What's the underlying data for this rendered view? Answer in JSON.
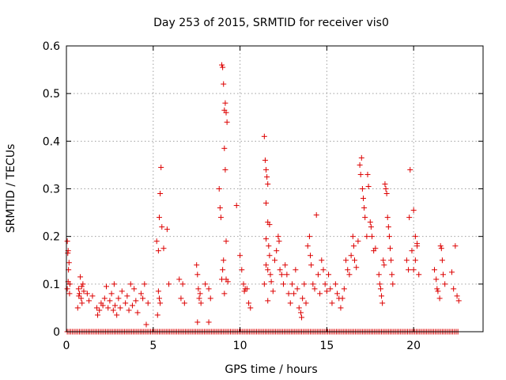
{
  "chart_data": {
    "type": "scatter",
    "title": "Day 253 of 2015, SRMTID for receiver vis0",
    "xlabel": "GPS time / hours",
    "ylabel": "SRMTID / TECUs",
    "xlim": [
      0,
      24
    ],
    "ylim": [
      0,
      0.6
    ],
    "xticks": [
      0,
      5,
      10,
      15,
      20
    ],
    "yticks": [
      0,
      0.1,
      0.2,
      0.3,
      0.4,
      0.5,
      0.6
    ],
    "grid": true,
    "marker": "+",
    "marker_color": "#dd0000",
    "series": [
      {
        "name": "vis0",
        "points": [
          [
            0.05,
            0.19
          ],
          [
            0.1,
            0.17
          ],
          [
            0.08,
            0.165
          ],
          [
            0.12,
            0.13
          ],
          [
            0.15,
            0.145
          ],
          [
            0.05,
            0.09
          ],
          [
            0.18,
            0.08
          ],
          [
            0.1,
            0.105
          ],
          [
            0.2,
            0.1
          ],
          [
            0.7,
            0.09
          ],
          [
            0.8,
            0.115
          ],
          [
            0.75,
            0.08
          ],
          [
            0.85,
            0.07
          ],
          [
            0.9,
            0.06
          ],
          [
            0.95,
            0.1
          ],
          [
            0.65,
            0.05
          ],
          [
            1.0,
            0.085
          ],
          [
            0.72,
            0.075
          ],
          [
            0.88,
            0.095
          ],
          [
            1.2,
            0.08
          ],
          [
            1.3,
            0.065
          ],
          [
            1.5,
            0.075
          ],
          [
            1.75,
            0.05
          ],
          [
            1.8,
            0.035
          ],
          [
            1.9,
            0.045
          ],
          [
            2.0,
            0.06
          ],
          [
            2.1,
            0.055
          ],
          [
            2.2,
            0.07
          ],
          [
            2.3,
            0.095
          ],
          [
            2.4,
            0.05
          ],
          [
            2.5,
            0.065
          ],
          [
            2.6,
            0.08
          ],
          [
            2.7,
            0.045
          ],
          [
            2.75,
            0.1
          ],
          [
            2.8,
            0.055
          ],
          [
            2.9,
            0.035
          ],
          [
            3.0,
            0.07
          ],
          [
            3.1,
            0.05
          ],
          [
            3.2,
            0.085
          ],
          [
            3.4,
            0.06
          ],
          [
            3.5,
            0.075
          ],
          [
            3.6,
            0.045
          ],
          [
            3.7,
            0.1
          ],
          [
            3.8,
            0.055
          ],
          [
            3.9,
            0.09
          ],
          [
            4.0,
            0.065
          ],
          [
            4.1,
            0.04
          ],
          [
            4.3,
            0.08
          ],
          [
            4.4,
            0.07
          ],
          [
            4.5,
            0.1
          ],
          [
            4.6,
            0.015
          ],
          [
            4.7,
            0.06
          ],
          [
            5.2,
            0.19
          ],
          [
            5.3,
            0.17
          ],
          [
            5.35,
            0.24
          ],
          [
            5.4,
            0.29
          ],
          [
            5.45,
            0.345
          ],
          [
            5.5,
            0.22
          ],
          [
            5.6,
            0.175
          ],
          [
            5.8,
            0.215
          ],
          [
            5.9,
            0.1
          ],
          [
            5.3,
            0.085
          ],
          [
            5.35,
            0.07
          ],
          [
            5.4,
            0.06
          ],
          [
            5.25,
            0.035
          ],
          [
            6.5,
            0.11
          ],
          [
            6.6,
            0.07
          ],
          [
            6.7,
            0.1
          ],
          [
            6.8,
            0.06
          ],
          [
            7.5,
            0.14
          ],
          [
            7.55,
            0.12
          ],
          [
            7.6,
            0.09
          ],
          [
            7.65,
            0.07
          ],
          [
            7.7,
            0.08
          ],
          [
            7.75,
            0.06
          ],
          [
            7.55,
            0.02
          ],
          [
            8.0,
            0.1
          ],
          [
            8.2,
            0.09
          ],
          [
            8.3,
            0.07
          ],
          [
            8.2,
            0.02
          ],
          [
            8.8,
            0.3
          ],
          [
            8.85,
            0.26
          ],
          [
            8.9,
            0.24
          ],
          [
            8.95,
            0.56
          ],
          [
            9.0,
            0.555
          ],
          [
            9.05,
            0.52
          ],
          [
            9.1,
            0.465
          ],
          [
            9.15,
            0.48
          ],
          [
            9.2,
            0.46
          ],
          [
            9.25,
            0.44
          ],
          [
            9.1,
            0.385
          ],
          [
            9.15,
            0.34
          ],
          [
            9.2,
            0.19
          ],
          [
            9.05,
            0.15
          ],
          [
            9.0,
            0.13
          ],
          [
            9.2,
            0.11
          ],
          [
            9.3,
            0.105
          ],
          [
            9.1,
            0.08
          ],
          [
            8.95,
            0.11
          ],
          [
            9.8,
            0.265
          ],
          [
            10.0,
            0.16
          ],
          [
            10.1,
            0.13
          ],
          [
            10.2,
            0.1
          ],
          [
            10.25,
            0.085
          ],
          [
            10.3,
            0.09
          ],
          [
            10.4,
            0.09
          ],
          [
            10.5,
            0.06
          ],
          [
            10.6,
            0.05
          ],
          [
            11.4,
            0.41
          ],
          [
            11.45,
            0.36
          ],
          [
            11.5,
            0.34
          ],
          [
            11.55,
            0.325
          ],
          [
            11.6,
            0.31
          ],
          [
            11.5,
            0.27
          ],
          [
            11.6,
            0.23
          ],
          [
            11.7,
            0.225
          ],
          [
            11.5,
            0.195
          ],
          [
            11.65,
            0.18
          ],
          [
            11.7,
            0.16
          ],
          [
            11.5,
            0.14
          ],
          [
            11.6,
            0.13
          ],
          [
            11.75,
            0.12
          ],
          [
            11.8,
            0.105
          ],
          [
            11.4,
            0.1
          ],
          [
            11.9,
            0.085
          ],
          [
            11.6,
            0.065
          ],
          [
            12.0,
            0.15
          ],
          [
            12.1,
            0.17
          ],
          [
            12.2,
            0.2
          ],
          [
            12.25,
            0.19
          ],
          [
            12.3,
            0.13
          ],
          [
            12.4,
            0.12
          ],
          [
            12.5,
            0.1
          ],
          [
            12.6,
            0.14
          ],
          [
            12.7,
            0.12
          ],
          [
            12.8,
            0.08
          ],
          [
            12.9,
            0.06
          ],
          [
            13.0,
            0.1
          ],
          [
            13.1,
            0.08
          ],
          [
            13.2,
            0.13
          ],
          [
            13.3,
            0.09
          ],
          [
            13.4,
            0.05
          ],
          [
            13.5,
            0.04
          ],
          [
            13.55,
            0.03
          ],
          [
            13.6,
            0.07
          ],
          [
            13.7,
            0.1
          ],
          [
            13.8,
            0.06
          ],
          [
            13.9,
            0.18
          ],
          [
            14.0,
            0.2
          ],
          [
            14.05,
            0.16
          ],
          [
            14.1,
            0.14
          ],
          [
            14.2,
            0.1
          ],
          [
            14.3,
            0.09
          ],
          [
            14.4,
            0.245
          ],
          [
            14.5,
            0.12
          ],
          [
            14.6,
            0.08
          ],
          [
            14.7,
            0.15
          ],
          [
            14.8,
            0.13
          ],
          [
            14.9,
            0.1
          ],
          [
            15.0,
            0.085
          ],
          [
            15.1,
            0.12
          ],
          [
            15.2,
            0.09
          ],
          [
            15.3,
            0.06
          ],
          [
            15.5,
            0.1
          ],
          [
            15.6,
            0.08
          ],
          [
            15.7,
            0.07
          ],
          [
            15.8,
            0.05
          ],
          [
            15.9,
            0.07
          ],
          [
            16.0,
            0.09
          ],
          [
            16.1,
            0.15
          ],
          [
            16.2,
            0.13
          ],
          [
            16.3,
            0.12
          ],
          [
            16.4,
            0.16
          ],
          [
            16.5,
            0.2
          ],
          [
            16.55,
            0.18
          ],
          [
            16.6,
            0.15
          ],
          [
            16.7,
            0.135
          ],
          [
            16.8,
            0.19
          ],
          [
            16.9,
            0.35
          ],
          [
            16.95,
            0.33
          ],
          [
            17.0,
            0.365
          ],
          [
            17.05,
            0.3
          ],
          [
            17.1,
            0.28
          ],
          [
            17.15,
            0.26
          ],
          [
            17.2,
            0.24
          ],
          [
            17.3,
            0.2
          ],
          [
            17.35,
            0.33
          ],
          [
            17.4,
            0.305
          ],
          [
            17.5,
            0.23
          ],
          [
            17.55,
            0.22
          ],
          [
            17.6,
            0.2
          ],
          [
            17.7,
            0.17
          ],
          [
            17.8,
            0.175
          ],
          [
            18.0,
            0.12
          ],
          [
            18.05,
            0.1
          ],
          [
            18.1,
            0.09
          ],
          [
            18.15,
            0.075
          ],
          [
            18.2,
            0.06
          ],
          [
            18.25,
            0.15
          ],
          [
            18.3,
            0.14
          ],
          [
            18.35,
            0.31
          ],
          [
            18.4,
            0.3
          ],
          [
            18.45,
            0.29
          ],
          [
            18.5,
            0.24
          ],
          [
            18.55,
            0.22
          ],
          [
            18.6,
            0.2
          ],
          [
            18.65,
            0.175
          ],
          [
            18.7,
            0.15
          ],
          [
            18.75,
            0.12
          ],
          [
            18.8,
            0.1
          ],
          [
            19.6,
            0.15
          ],
          [
            19.7,
            0.13
          ],
          [
            19.75,
            0.24
          ],
          [
            19.8,
            0.34
          ],
          [
            19.9,
            0.17
          ],
          [
            20.0,
            0.255
          ],
          [
            20.1,
            0.2
          ],
          [
            20.2,
            0.18
          ],
          [
            20.3,
            0.12
          ],
          [
            20.0,
            0.13
          ],
          [
            20.1,
            0.15
          ],
          [
            20.2,
            0.185
          ],
          [
            21.2,
            0.13
          ],
          [
            21.3,
            0.11
          ],
          [
            21.35,
            0.09
          ],
          [
            21.4,
            0.085
          ],
          [
            21.5,
            0.07
          ],
          [
            21.55,
            0.18
          ],
          [
            21.6,
            0.175
          ],
          [
            21.65,
            0.15
          ],
          [
            21.7,
            0.12
          ],
          [
            21.8,
            0.1
          ],
          [
            22.2,
            0.125
          ],
          [
            22.3,
            0.09
          ],
          [
            22.4,
            0.18
          ],
          [
            22.5,
            0.075
          ],
          [
            22.6,
            0.065
          ]
        ],
        "zero_points": [
          0.05,
          0.15,
          0.25,
          0.35,
          0.45,
          0.55,
          0.65,
          0.75,
          0.85,
          0.95,
          1.05,
          1.15,
          1.25,
          1.35,
          1.45,
          1.55,
          1.65,
          1.75,
          1.85,
          1.95,
          2.05,
          2.15,
          2.25,
          2.35,
          2.45,
          2.55,
          2.65,
          2.75,
          2.85,
          2.95,
          3.05,
          3.15,
          3.25,
          3.35,
          3.45,
          3.55,
          3.65,
          3.75,
          3.85,
          3.95,
          4.05,
          4.15,
          4.25,
          4.35,
          4.45,
          4.55,
          4.65,
          4.75,
          4.85,
          4.95,
          5.05,
          5.15,
          5.25,
          5.35,
          5.45,
          5.55,
          5.65,
          5.75,
          5.85,
          5.95,
          6.05,
          6.15,
          6.25,
          6.35,
          6.45,
          6.55,
          6.65,
          6.75,
          6.85,
          6.95,
          7.05,
          7.15,
          7.25,
          7.35,
          7.45,
          7.55,
          7.65,
          7.75,
          7.85,
          7.95,
          8.05,
          8.15,
          8.25,
          8.35,
          8.45,
          8.55,
          8.65,
          8.75,
          8.85,
          8.95,
          9.05,
          9.15,
          9.25,
          9.35,
          9.45,
          9.55,
          9.65,
          9.75,
          9.85,
          9.95,
          10.05,
          10.15,
          10.25,
          10.35,
          10.45,
          10.55,
          10.65,
          10.75,
          10.85,
          10.95,
          11.05,
          11.15,
          11.25,
          11.35,
          11.45,
          11.55,
          11.65,
          11.75,
          11.85,
          11.95,
          12.05,
          12.15,
          12.25,
          12.35,
          12.45,
          12.55,
          12.65,
          12.75,
          12.85,
          12.95,
          13.05,
          13.15,
          13.25,
          13.35,
          13.45,
          13.55,
          13.65,
          13.75,
          13.85,
          13.95,
          14.05,
          14.15,
          14.25,
          14.35,
          14.45,
          14.55,
          14.65,
          14.75,
          14.85,
          14.95,
          15.05,
          15.15,
          15.25,
          15.35,
          15.45,
          15.55,
          15.65,
          15.75,
          15.85,
          15.95,
          16.05,
          16.15,
          16.25,
          16.35,
          16.45,
          16.55,
          16.65,
          16.75,
          16.85,
          16.95,
          17.05,
          17.15,
          17.25,
          17.35,
          17.45,
          17.55,
          17.65,
          17.75,
          17.85,
          17.95,
          18.05,
          18.15,
          18.25,
          18.35,
          18.45,
          18.55,
          18.65,
          18.75,
          18.85,
          18.95,
          19.05,
          19.15,
          19.25,
          19.35,
          19.45,
          19.55,
          19.65,
          19.75,
          19.85,
          19.95,
          20.05,
          20.15,
          20.25,
          20.35,
          20.45,
          20.55,
          20.65,
          20.75,
          20.85,
          20.95,
          21.05,
          21.15,
          21.25,
          21.35,
          21.45,
          21.55,
          21.65,
          21.75,
          21.85,
          21.95,
          22.05,
          22.15,
          22.25,
          22.35,
          22.45,
          22.55
        ]
      }
    ]
  }
}
